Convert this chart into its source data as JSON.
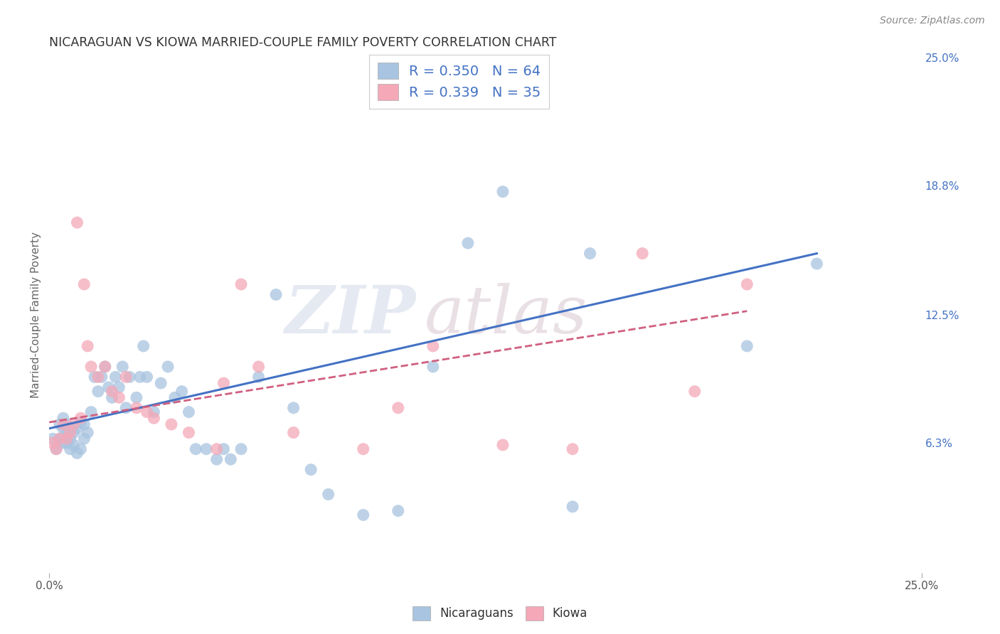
{
  "title": "NICARAGUAN VS KIOWA MARRIED-COUPLE FAMILY POVERTY CORRELATION CHART",
  "source": "Source: ZipAtlas.com",
  "ylabel": "Married-Couple Family Poverty",
  "xlim": [
    0.0,
    0.25
  ],
  "ylim": [
    0.0,
    0.25
  ],
  "ytick_labels": [
    "6.3%",
    "12.5%",
    "18.8%",
    "25.0%"
  ],
  "ytick_values": [
    0.063,
    0.125,
    0.188,
    0.25
  ],
  "legend_labels": [
    "Nicaraguans",
    "Kiowa"
  ],
  "nicaraguan_color": "#a8c4e0",
  "kiowa_color": "#f4a8b8",
  "nicaraguan_line_color": "#4472c4",
  "kiowa_line_color": "#d06080",
  "r_nicaraguan": 0.35,
  "n_nicaraguan": 64,
  "r_kiowa": 0.339,
  "n_kiowa": 35,
  "watermark_zip": "ZIP",
  "watermark_atlas": "atlas",
  "background_color": "#ffffff",
  "grid_color": "#cccccc",
  "title_color": "#333333",
  "axis_label_color": "#666666",
  "right_tick_color": "#4472c4",
  "nicaraguan_x": [
    0.001,
    0.002,
    0.003,
    0.003,
    0.004,
    0.004,
    0.004,
    0.005,
    0.005,
    0.005,
    0.006,
    0.006,
    0.006,
    0.007,
    0.007,
    0.008,
    0.008,
    0.009,
    0.009,
    0.01,
    0.01,
    0.011,
    0.012,
    0.013,
    0.014,
    0.015,
    0.016,
    0.017,
    0.018,
    0.019,
    0.02,
    0.021,
    0.022,
    0.023,
    0.025,
    0.026,
    0.027,
    0.028,
    0.03,
    0.032,
    0.034,
    0.036,
    0.038,
    0.04,
    0.042,
    0.045,
    0.048,
    0.05,
    0.052,
    0.055,
    0.06,
    0.065,
    0.07,
    0.075,
    0.08,
    0.09,
    0.1,
    0.11,
    0.12,
    0.13,
    0.15,
    0.155,
    0.2,
    0.22
  ],
  "nicaraguan_y": [
    0.065,
    0.06,
    0.065,
    0.072,
    0.063,
    0.07,
    0.075,
    0.063,
    0.068,
    0.072,
    0.06,
    0.065,
    0.07,
    0.062,
    0.068,
    0.058,
    0.07,
    0.06,
    0.073,
    0.065,
    0.072,
    0.068,
    0.078,
    0.095,
    0.088,
    0.095,
    0.1,
    0.09,
    0.085,
    0.095,
    0.09,
    0.1,
    0.08,
    0.095,
    0.085,
    0.095,
    0.11,
    0.095,
    0.078,
    0.092,
    0.1,
    0.085,
    0.088,
    0.078,
    0.06,
    0.06,
    0.055,
    0.06,
    0.055,
    0.06,
    0.095,
    0.135,
    0.08,
    0.05,
    0.038,
    0.028,
    0.03,
    0.1,
    0.16,
    0.185,
    0.032,
    0.155,
    0.11,
    0.15
  ],
  "kiowa_x": [
    0.001,
    0.002,
    0.003,
    0.004,
    0.005,
    0.006,
    0.007,
    0.008,
    0.009,
    0.01,
    0.011,
    0.012,
    0.014,
    0.016,
    0.018,
    0.02,
    0.022,
    0.025,
    0.028,
    0.03,
    0.035,
    0.04,
    0.048,
    0.05,
    0.055,
    0.06,
    0.07,
    0.09,
    0.1,
    0.11,
    0.13,
    0.15,
    0.17,
    0.185,
    0.2
  ],
  "kiowa_y": [
    0.063,
    0.06,
    0.065,
    0.072,
    0.065,
    0.068,
    0.072,
    0.17,
    0.075,
    0.14,
    0.11,
    0.1,
    0.095,
    0.1,
    0.088,
    0.085,
    0.095,
    0.08,
    0.078,
    0.075,
    0.072,
    0.068,
    0.06,
    0.092,
    0.14,
    0.1,
    0.068,
    0.06,
    0.08,
    0.11,
    0.062,
    0.06,
    0.155,
    0.088,
    0.14
  ],
  "nic_line_x": [
    0.0,
    0.22
  ],
  "nic_line_y": [
    0.07,
    0.155
  ],
  "kiowa_line_x": [
    0.0,
    0.2
  ],
  "kiowa_line_y": [
    0.073,
    0.127
  ]
}
